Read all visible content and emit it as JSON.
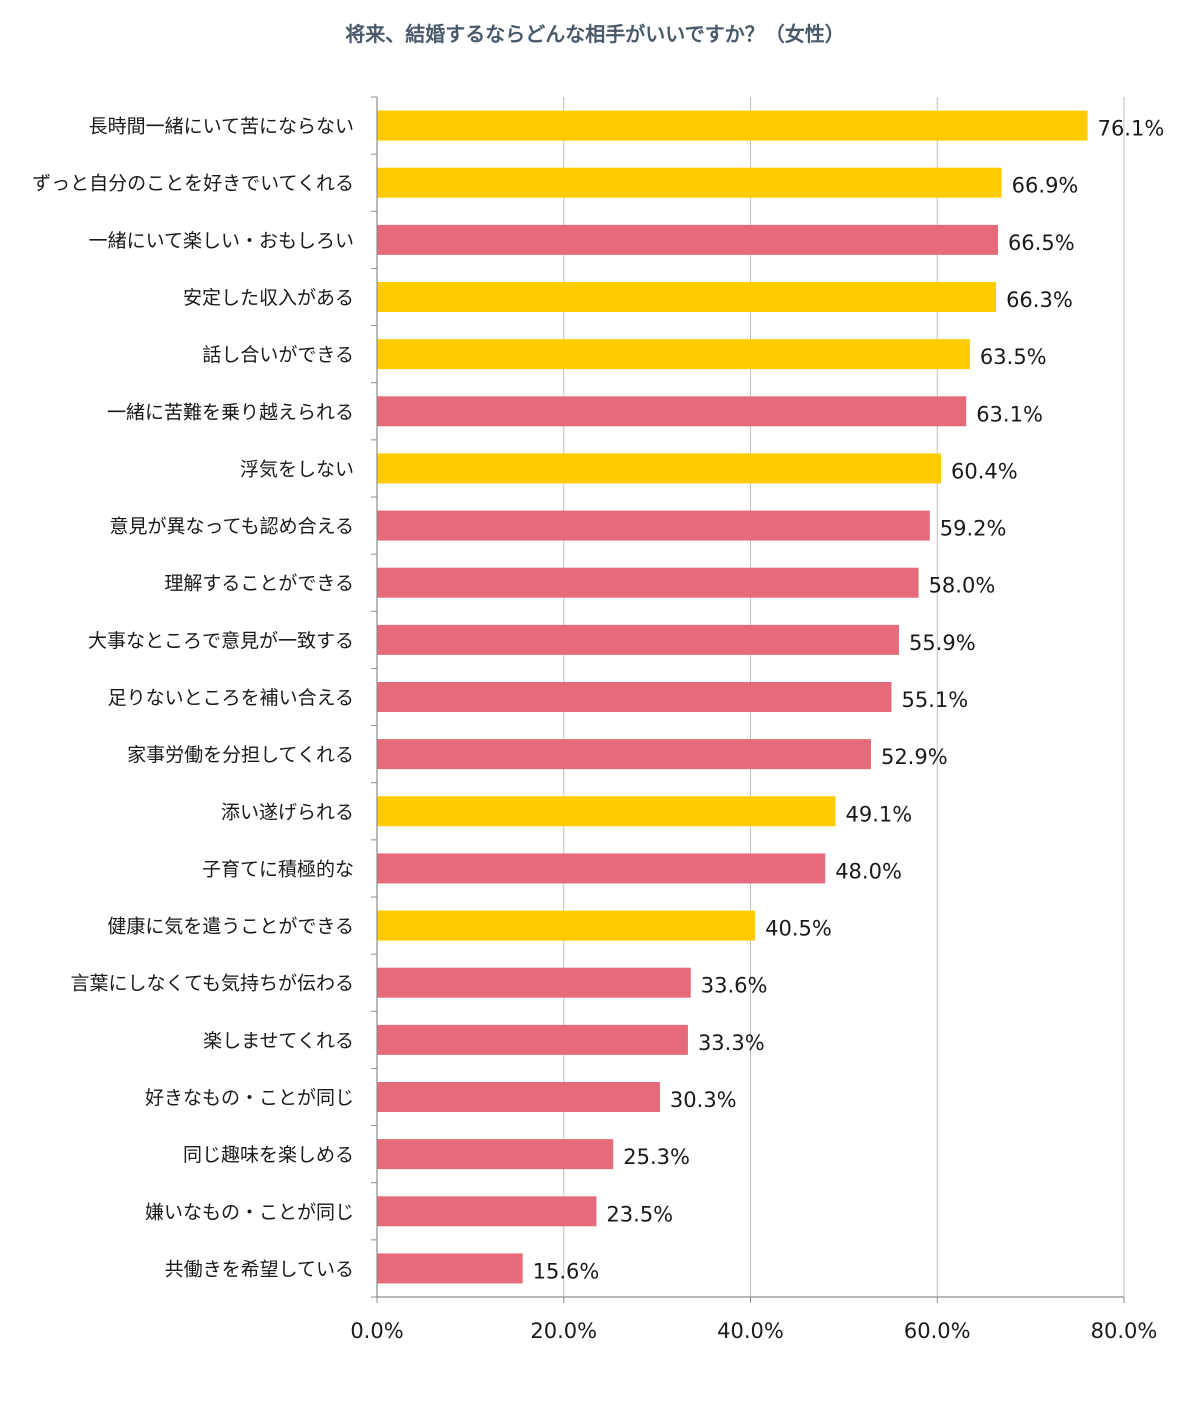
{
  "chart_data": {
    "type": "bar",
    "orientation": "horizontal",
    "title": "将来、結婚するならどんな相手がいいですか？（女性）",
    "categories": [
      "長時間一緒にいて苦にならない",
      "ずっと自分のことを好きでいてくれる",
      "一緒にいて楽しい・おもしろい",
      "安定した収入がある",
      "話し合いができる",
      "一緒に苦難を乗り越えられる",
      "浮気をしない",
      "意見が異なっても認め合える",
      "理解することができる",
      "大事なところで意見が一致する",
      "足りないところを補い合える",
      "家事労働を分担してくれる",
      "添い遂げられる",
      "子育てに積極的な",
      "健康に気を遣うことができる",
      "言葉にしなくても気持ちが伝わる",
      "楽しませてくれる",
      "好きなもの・ことが同じ",
      "同じ趣味を楽しめる",
      "嫌いなもの・ことが同じ",
      "共働きを希望している"
    ],
    "values": [
      76.1,
      66.9,
      66.5,
      66.3,
      63.5,
      63.1,
      60.4,
      59.2,
      58.0,
      55.9,
      55.1,
      52.9,
      49.1,
      48.0,
      40.5,
      33.6,
      33.3,
      30.3,
      25.3,
      23.5,
      15.6
    ],
    "value_labels": [
      "76.1%",
      "66.9%",
      "66.5%",
      "66.3%",
      "63.5%",
      "63.1%",
      "60.4%",
      "59.2%",
      "58.0%",
      "55.9%",
      "55.1%",
      "52.9%",
      "49.1%",
      "48.0%",
      "40.5%",
      "33.6%",
      "33.3%",
      "30.3%",
      "25.3%",
      "23.5%",
      "15.6%"
    ],
    "highlight": [
      true,
      true,
      false,
      true,
      true,
      false,
      true,
      false,
      false,
      false,
      false,
      false,
      true,
      false,
      true,
      false,
      false,
      false,
      false,
      false,
      false
    ],
    "xlim": [
      0,
      80
    ],
    "xticks": [
      0,
      20,
      40,
      60,
      80
    ],
    "xtick_labels": [
      "0.0%",
      "20.0%",
      "40.0%",
      "60.0%",
      "80.0%"
    ],
    "grid": true,
    "legend": "none",
    "colors": {
      "highlight": "#ffcc00",
      "default": "#e56b7a",
      "grid": "#bfbfbf",
      "axis": "#8c8c8c",
      "title": "#4b5a6b"
    }
  }
}
